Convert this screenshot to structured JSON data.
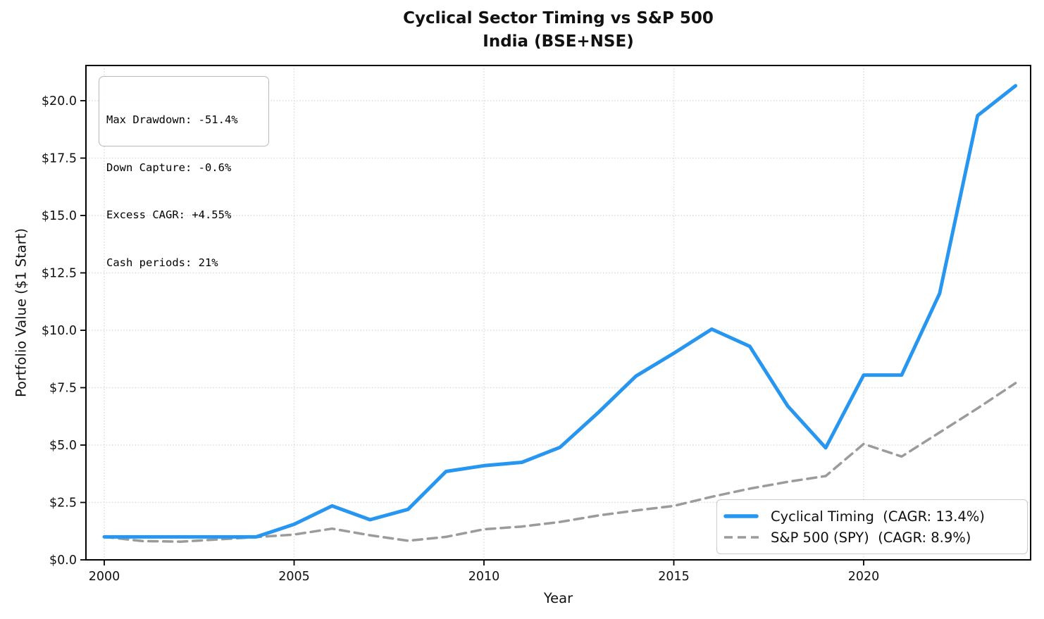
{
  "title": {
    "line1": "Cyclical Sector Timing vs S&P 500",
    "line2": "India (BSE+NSE)"
  },
  "stats_box": {
    "lines": [
      "Max Drawdown: -51.4%",
      "Down Capture: -0.6%",
      "Excess CAGR: +4.55%",
      "Cash periods: 21%"
    ]
  },
  "legend": {
    "entries": [
      {
        "label": "Cyclical Timing  (CAGR: 13.4%)",
        "color": "#2796F0",
        "style": "solid"
      },
      {
        "label": "S&P 500 (SPY)  (CAGR: 8.9%)",
        "color": "#9b9b9b",
        "style": "dashed"
      }
    ]
  },
  "chart_data": {
    "type": "line",
    "title": "Cyclical Sector Timing vs S&P 500 — India (BSE+NSE)",
    "xlabel": "Year",
    "ylabel": "Portfolio Value ($1 Start)",
    "x": [
      2000,
      2001,
      2002,
      2003,
      2004,
      2005,
      2006,
      2007,
      2008,
      2009,
      2010,
      2011,
      2012,
      2013,
      2014,
      2015,
      2016,
      2017,
      2018,
      2019,
      2020,
      2021,
      2022,
      2023,
      2024
    ],
    "series": [
      {
        "name": "Cyclical Timing  (CAGR: 13.4%)",
        "color": "#2796F0",
        "line_style": "solid",
        "line_width": 5,
        "values": [
          1.0,
          1.0,
          1.0,
          1.0,
          1.0,
          1.55,
          2.35,
          1.75,
          2.2,
          3.85,
          4.1,
          4.25,
          4.9,
          6.4,
          8.0,
          9.0,
          10.05,
          9.3,
          6.7,
          4.88,
          8.05,
          8.05,
          11.6,
          19.35,
          20.65
        ]
      },
      {
        "name": "S&P 500 (SPY)  (CAGR: 8.9%)",
        "color": "#9b9b9b",
        "line_style": "dashed",
        "line_width": 3.5,
        "values": [
          1.0,
          0.82,
          0.79,
          0.89,
          0.99,
          1.1,
          1.36,
          1.07,
          0.83,
          1.0,
          1.33,
          1.45,
          1.65,
          1.93,
          2.15,
          2.35,
          2.75,
          3.1,
          3.4,
          3.65,
          5.05,
          4.5,
          5.55,
          6.6,
          7.7
        ]
      }
    ],
    "x_ticks": [
      2000,
      2005,
      2010,
      2015,
      2020
    ],
    "y_tick_values": [
      0,
      2.5,
      5,
      7.5,
      10,
      12.5,
      15,
      17.5,
      20
    ],
    "y_tick_labels": [
      "$0.0",
      "$2.5",
      "$5.0",
      "$7.5",
      "$10.0",
      "$12.5",
      "$15.0",
      "$17.5",
      "$20.0"
    ],
    "ylim": [
      0,
      21.5
    ],
    "xlim": [
      1999.5,
      2024.5
    ],
    "grid": true,
    "legend_position": "lower right"
  }
}
